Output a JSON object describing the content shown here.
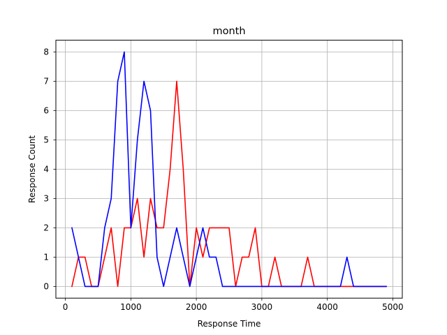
{
  "chart_data": {
    "type": "line",
    "title": "month",
    "xlabel": "Response Time",
    "ylabel": "Response Count",
    "xlim": [
      -145,
      5145
    ],
    "ylim": [
      -0.4,
      8.4
    ],
    "xticks": [
      0,
      1000,
      2000,
      3000,
      4000,
      5000
    ],
    "yticks": [
      0,
      1,
      2,
      3,
      4,
      5,
      6,
      7,
      8
    ],
    "grid": true,
    "x": [
      100,
      200,
      300,
      400,
      500,
      600,
      700,
      800,
      900,
      1000,
      1100,
      1200,
      1300,
      1400,
      1500,
      1600,
      1700,
      1800,
      1900,
      2000,
      2100,
      2200,
      2300,
      2400,
      2500,
      2600,
      2700,
      2800,
      2900,
      3000,
      3100,
      3200,
      3300,
      3400,
      3500,
      3600,
      3700,
      3800,
      3900,
      4000,
      4100,
      4200,
      4300,
      4400,
      4500,
      4600,
      4700,
      4800,
      4900
    ],
    "series": [
      {
        "color": "#ff0000",
        "values": [
          0,
          1,
          1,
          0,
          0,
          1,
          2,
          0,
          2,
          2,
          3,
          1,
          3,
          2,
          2,
          4,
          7,
          4,
          0,
          2,
          1,
          2,
          2,
          2,
          2,
          0,
          1,
          1,
          2,
          0,
          0,
          1,
          0,
          0,
          0,
          0,
          1,
          0,
          0,
          0,
          0,
          0,
          0,
          0,
          0,
          0,
          0,
          0,
          0
        ]
      },
      {
        "color": "#0000ff",
        "values": [
          2,
          1,
          0,
          0,
          0,
          2,
          3,
          7,
          8,
          2,
          5,
          7,
          6,
          1,
          0,
          1,
          2,
          1,
          0,
          1,
          2,
          1,
          1,
          0,
          0,
          0,
          0,
          0,
          0,
          0,
          0,
          0,
          0,
          0,
          0,
          0,
          0,
          0,
          0,
          0,
          0,
          0,
          1,
          0,
          0,
          0,
          0,
          0,
          0
        ]
      }
    ]
  }
}
